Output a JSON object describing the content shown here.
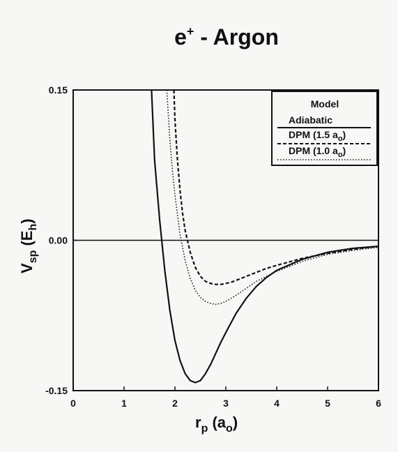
{
  "chart_data": {
    "type": "line",
    "title": {
      "main": "e",
      "sup": "+",
      "rest": " - Argon"
    },
    "xlabel": {
      "main": "r",
      "sub": "p",
      "unit_open": " (a",
      "unit_sub": "o",
      "unit_close": ")"
    },
    "ylabel": {
      "main": "V",
      "sub": "sp",
      "unit_open": " (E",
      "unit_sub": "h",
      "unit_close": ")"
    },
    "xlim": [
      0,
      6
    ],
    "ylim": [
      -0.15,
      0.15
    ],
    "x_ticks": [
      0,
      1,
      2,
      3,
      4,
      5,
      6
    ],
    "x_tick_labels": [
      "0",
      "1",
      "2",
      "3",
      "4",
      "5",
      "6"
    ],
    "y_ticks": [
      -0.15,
      0.0,
      0.15
    ],
    "y_tick_labels": [
      "-0.15",
      "0.00",
      "0.15"
    ],
    "zero_line": true,
    "legend": {
      "placement": "top-right",
      "title": "Model",
      "entries": [
        {
          "label": "Adiabatic",
          "style": "solid"
        },
        {
          "label": "DPM (1.5 a",
          "label_sub": "o",
          "label_close": ")",
          "style": "dashed"
        },
        {
          "label": "DPM (1.0 a",
          "label_sub": "o",
          "label_close": ")",
          "style": "dotted"
        }
      ]
    },
    "series": [
      {
        "style": "solid",
        "x": [
          1.54,
          1.6,
          1.7,
          1.8,
          1.9,
          2.0,
          2.1,
          2.2,
          2.3,
          2.4,
          2.5,
          2.6,
          2.7,
          2.8,
          2.9,
          3.0,
          3.2,
          3.4,
          3.6,
          3.8,
          4.0,
          4.5,
          5.0,
          5.5,
          6.0
        ],
        "y": [
          0.15,
          0.08,
          0.02,
          -0.03,
          -0.07,
          -0.1,
          -0.12,
          -0.133,
          -0.14,
          -0.142,
          -0.14,
          -0.133,
          -0.124,
          -0.113,
          -0.102,
          -0.092,
          -0.073,
          -0.058,
          -0.046,
          -0.037,
          -0.03,
          -0.019,
          -0.012,
          -0.008,
          -0.006
        ]
      },
      {
        "style": "dashed",
        "x": [
          1.98,
          2.0,
          2.05,
          2.1,
          2.15,
          2.2,
          2.3,
          2.4,
          2.5,
          2.6,
          2.7,
          2.8,
          2.9,
          3.0,
          3.1,
          3.2,
          3.4,
          3.6,
          3.8,
          4.0,
          4.5,
          5.0,
          5.5,
          6.0
        ],
        "y": [
          0.15,
          0.12,
          0.08,
          0.05,
          0.027,
          0.01,
          -0.012,
          -0.027,
          -0.036,
          -0.041,
          -0.043,
          -0.044,
          -0.044,
          -0.043,
          -0.042,
          -0.04,
          -0.036,
          -0.032,
          -0.028,
          -0.025,
          -0.018,
          -0.013,
          -0.009,
          -0.006
        ]
      },
      {
        "style": "dotted",
        "x": [
          1.84,
          1.9,
          1.95,
          2.0,
          2.1,
          2.2,
          2.3,
          2.4,
          2.5,
          2.6,
          2.7,
          2.8,
          2.9,
          3.0,
          3.2,
          3.4,
          3.6,
          3.8,
          4.0,
          4.5,
          5.0,
          5.5,
          6.0
        ],
        "y": [
          0.15,
          0.1,
          0.07,
          0.045,
          0.006,
          -0.02,
          -0.038,
          -0.05,
          -0.057,
          -0.061,
          -0.063,
          -0.064,
          -0.063,
          -0.061,
          -0.055,
          -0.048,
          -0.041,
          -0.036,
          -0.031,
          -0.021,
          -0.014,
          -0.01,
          -0.007
        ]
      }
    ]
  }
}
